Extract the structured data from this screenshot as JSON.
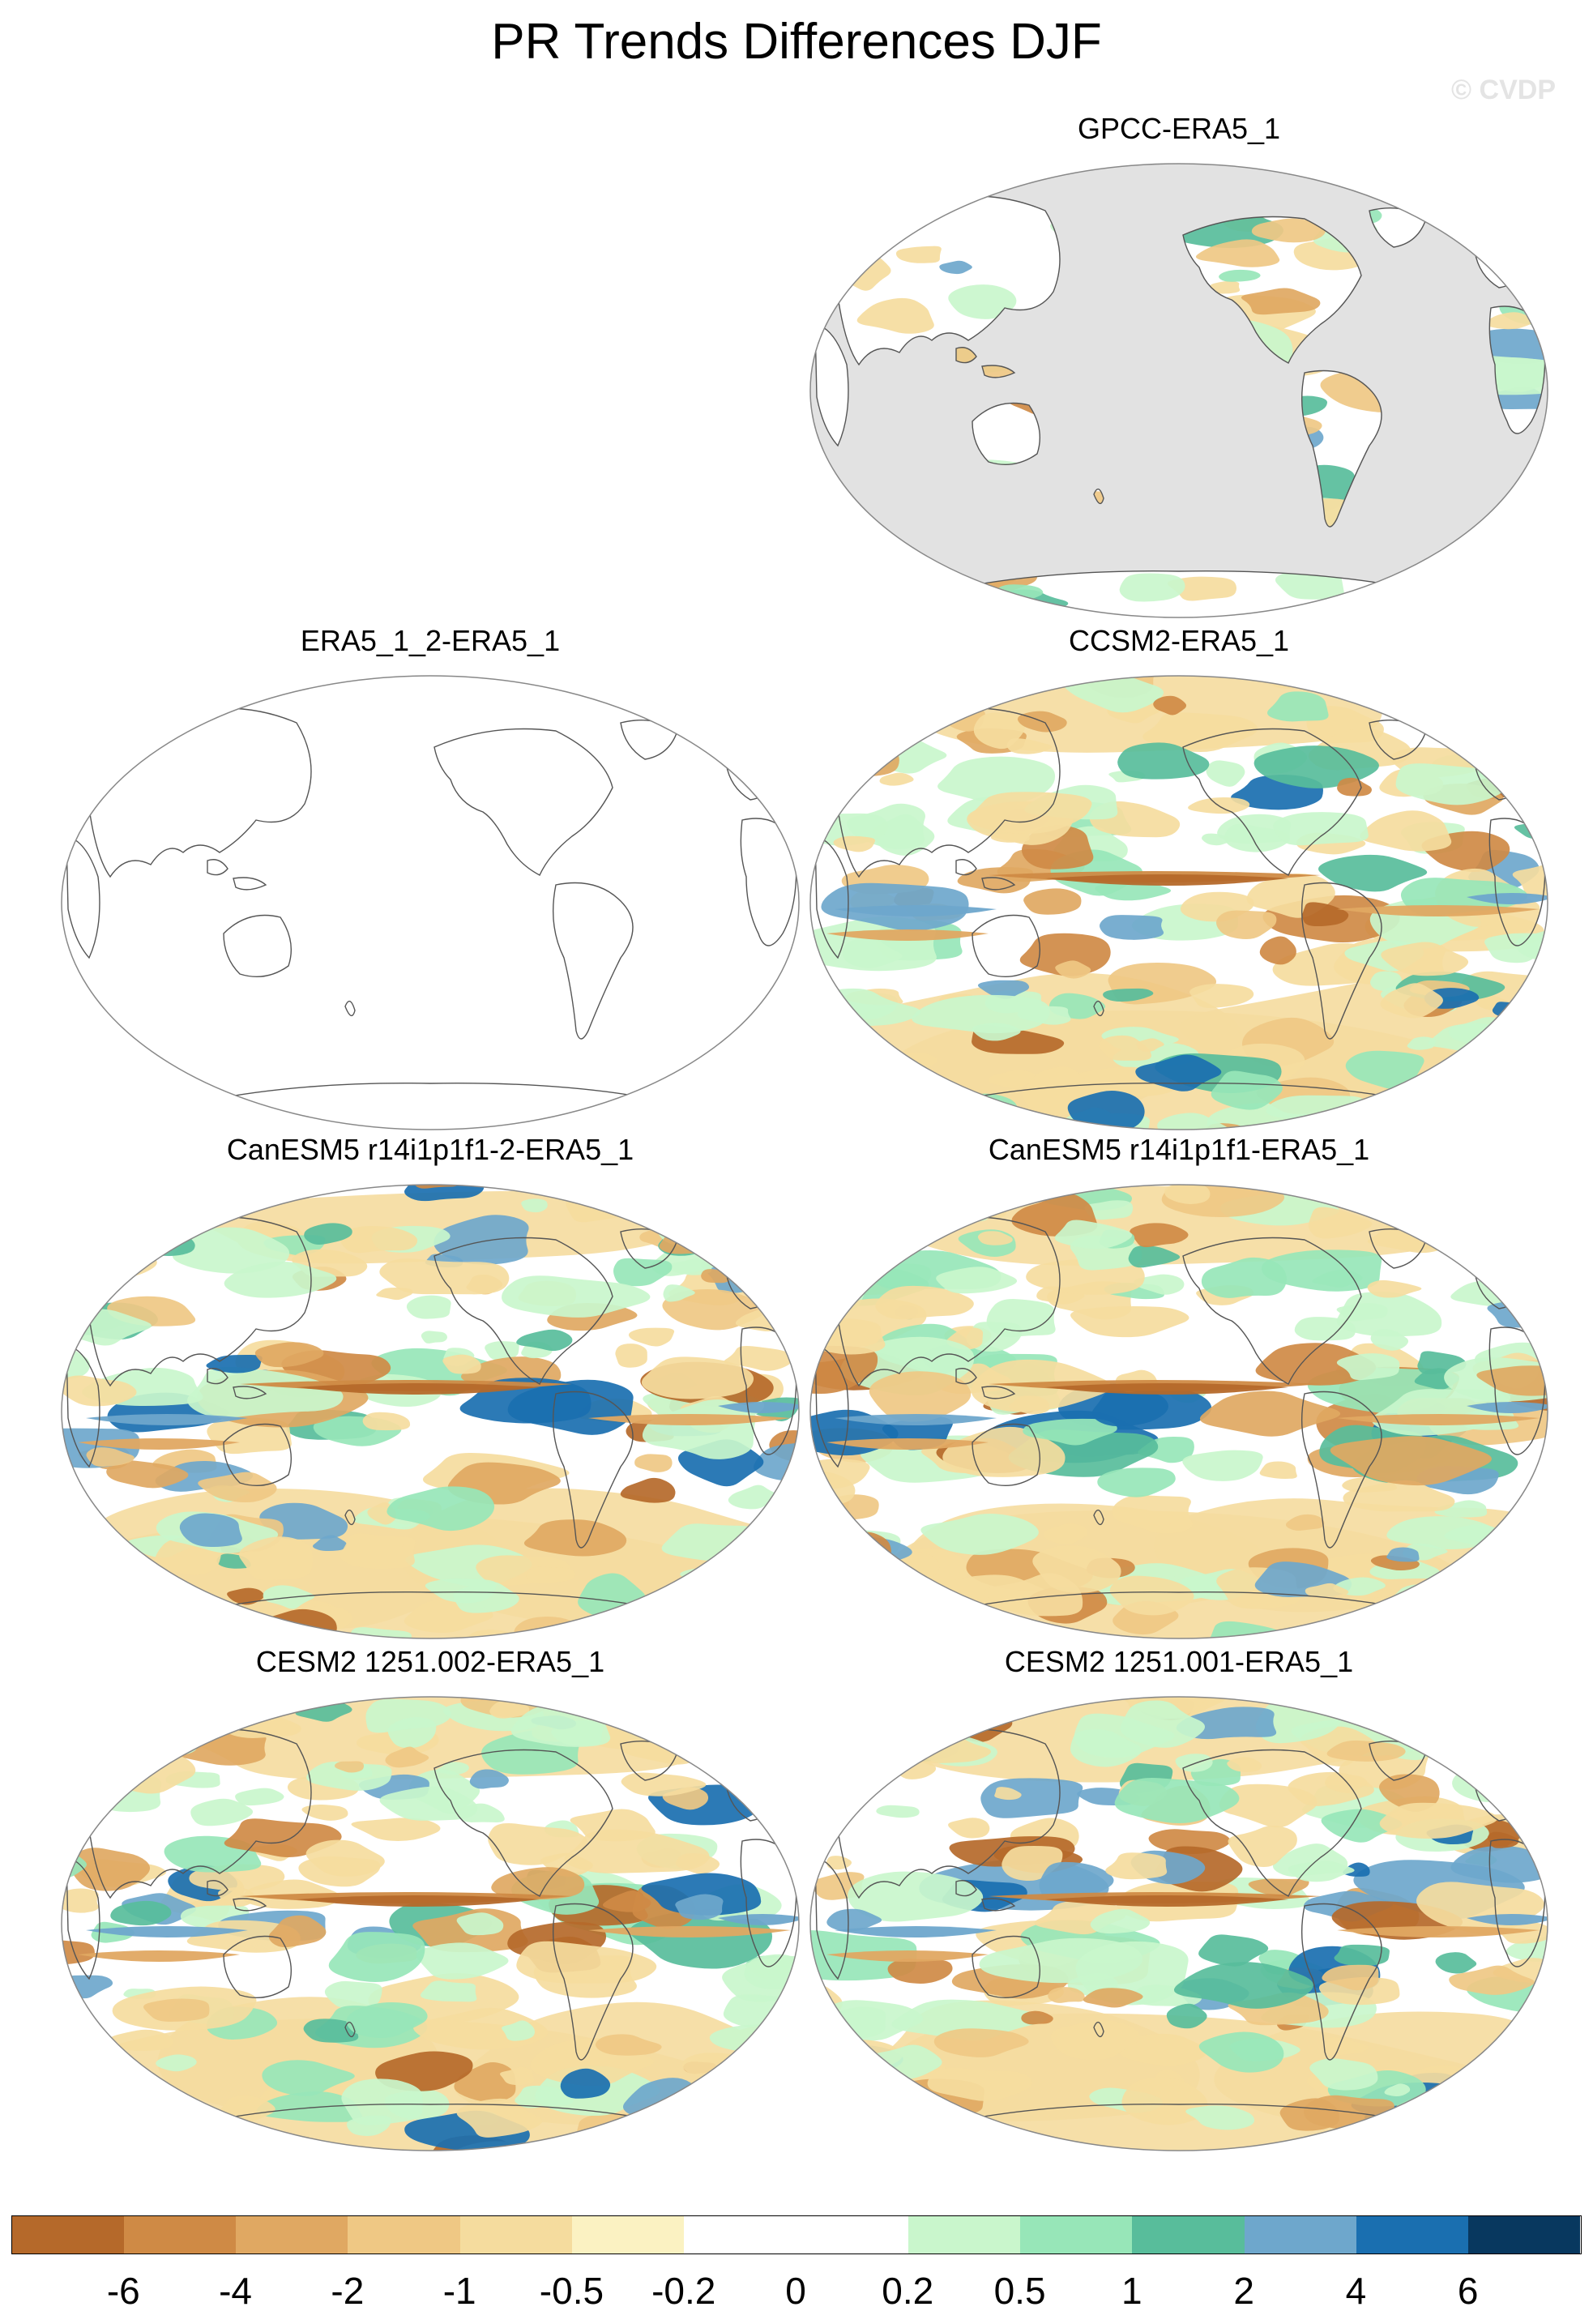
{
  "figure": {
    "title": "PR Trends Differences DJF",
    "credit": "© CVDP"
  },
  "panels": [
    {
      "id": "gpcc",
      "title": "GPCC-ERA5_1",
      "style": "land-only"
    },
    {
      "id": "era5b",
      "title": "ERA5_1_2-ERA5_1",
      "style": "empty"
    },
    {
      "id": "ccsm2",
      "title": "CCSM2-ERA5_1",
      "style": "global"
    },
    {
      "id": "canesm2",
      "title": "CanESM5 r14i1p1f1-2-ERA5_1",
      "style": "global"
    },
    {
      "id": "canesm1",
      "title": "CanESM5 r14i1p1f1-ERA5_1",
      "style": "global"
    },
    {
      "id": "cesm002",
      "title": "CESM2 1251.002-ERA5_1",
      "style": "global"
    },
    {
      "id": "cesm001",
      "title": "CESM2 1251.001-ERA5_1",
      "style": "global"
    }
  ],
  "colorbar": {
    "labels": [
      "-6",
      "-4",
      "-2",
      "-1",
      "-0.5",
      "-0.2",
      "0",
      "0.2",
      "0.5",
      "1",
      "2",
      "4",
      "6"
    ],
    "colors": [
      "#b5692a",
      "#cf8a45",
      "#e0a862",
      "#efc884",
      "#f5dc9e",
      "#fbf2c2",
      "#ffffff",
      "#ffffff",
      "#c9f6cc",
      "#97e6b8",
      "#58bd9b",
      "#6ea7cc",
      "#1a6fb0",
      "#08385f"
    ]
  },
  "colors": {
    "land_gray": "#e2e2e2",
    "coast": "#555555"
  }
}
